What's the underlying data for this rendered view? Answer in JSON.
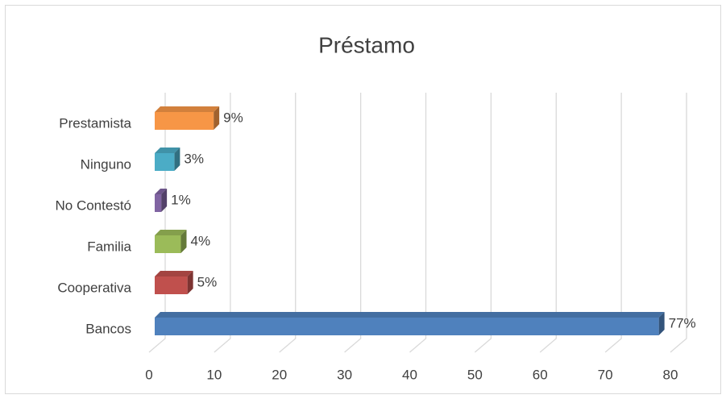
{
  "chart_data": {
    "type": "bar",
    "orientation": "horizontal",
    "title": "Préstamo",
    "categories": [
      "Prestamista",
      "Ninguno",
      "No Contestó",
      "Familia",
      "Cooperativa",
      "Bancos"
    ],
    "values": [
      9,
      3,
      1,
      4,
      5,
      77
    ],
    "value_labels": [
      "9%",
      "3%",
      "1%",
      "4%",
      "5%",
      "77%"
    ],
    "colors": [
      "#f79646",
      "#4bacc6",
      "#8064a2",
      "#9bbb59",
      "#c0504d",
      "#4f81bd"
    ],
    "xlim": [
      0,
      80
    ],
    "xticks": [
      0,
      10,
      20,
      30,
      40,
      50,
      60,
      70,
      80
    ],
    "grid": true
  }
}
